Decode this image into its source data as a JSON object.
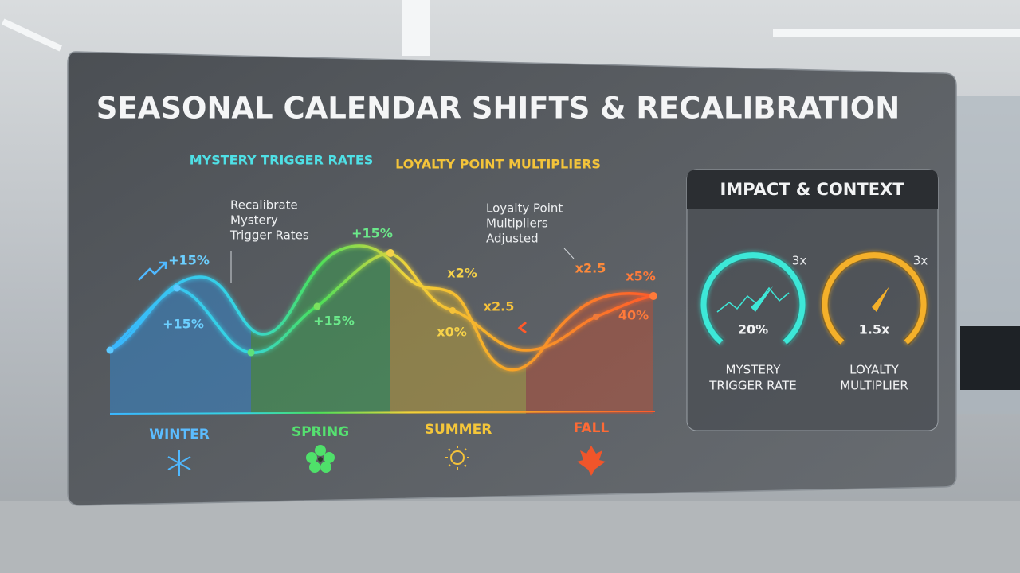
{
  "title": "SEASONAL CALENDAR SHIFTS & RECALIBRATION",
  "legend": {
    "mystery": "MYSTERY TRIGGER RATES",
    "loyalty": "LOYALTY POINT MULTIPLIERS"
  },
  "annotations": [
    [
      "Recalibrate",
      "Mystery",
      "Trigger Rates"
    ],
    [
      "Loyalty Point",
      "Multipliers",
      "Adjusted"
    ]
  ],
  "point_labels": [
    "+15%",
    "+15%",
    "+15%",
    "+15%",
    "x2%",
    "x0%",
    "x2.5",
    "x2.5",
    "x5%",
    "40%"
  ],
  "seasons": [
    "WINTER",
    "SPRING",
    "SUMMER",
    "FALL"
  ],
  "impact": {
    "title": "IMPACT & CONTEXT",
    "gauges": [
      {
        "max": "3x",
        "value": "20%",
        "label": [
          "MYSTERY",
          "TRIGGER RATE"
        ]
      },
      {
        "max": "3x",
        "value": "1.5x",
        "label": [
          "LOYALTY",
          "MULTIPLIER"
        ]
      }
    ]
  }
}
